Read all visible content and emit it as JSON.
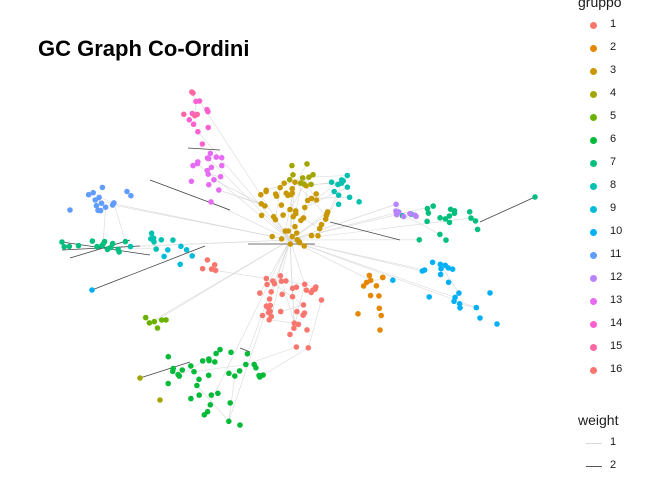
{
  "title": "GC Graph Co-Ordini",
  "legend": {
    "group_title": "gruppo",
    "groups": [
      {
        "label": "1",
        "color": "#F8766D"
      },
      {
        "label": "2",
        "color": "#E58700"
      },
      {
        "label": "3",
        "color": "#C99800"
      },
      {
        "label": "4",
        "color": "#A3A500"
      },
      {
        "label": "5",
        "color": "#6BB100"
      },
      {
        "label": "6",
        "color": "#00BA38"
      },
      {
        "label": "7",
        "color": "#00BF7D"
      },
      {
        "label": "8",
        "color": "#00C0AF"
      },
      {
        "label": "9",
        "color": "#00BCD8"
      },
      {
        "label": "10",
        "color": "#00B0F6"
      },
      {
        "label": "11",
        "color": "#619CFF"
      },
      {
        "label": "12",
        "color": "#B983FF"
      },
      {
        "label": "13",
        "color": "#E76BF3"
      },
      {
        "label": "14",
        "color": "#FD61D1"
      },
      {
        "label": "15",
        "color": "#FF67A4"
      },
      {
        "label": "16",
        "color": "#F8766D"
      }
    ],
    "weight_title": "weight",
    "weights": [
      {
        "label": "1",
        "color": "#d9d9d9"
      },
      {
        "label": "2",
        "color": "#555555"
      }
    ]
  },
  "colors": {
    "edge_light": "#d9d9d9",
    "edge_dark": "#444444"
  }
}
